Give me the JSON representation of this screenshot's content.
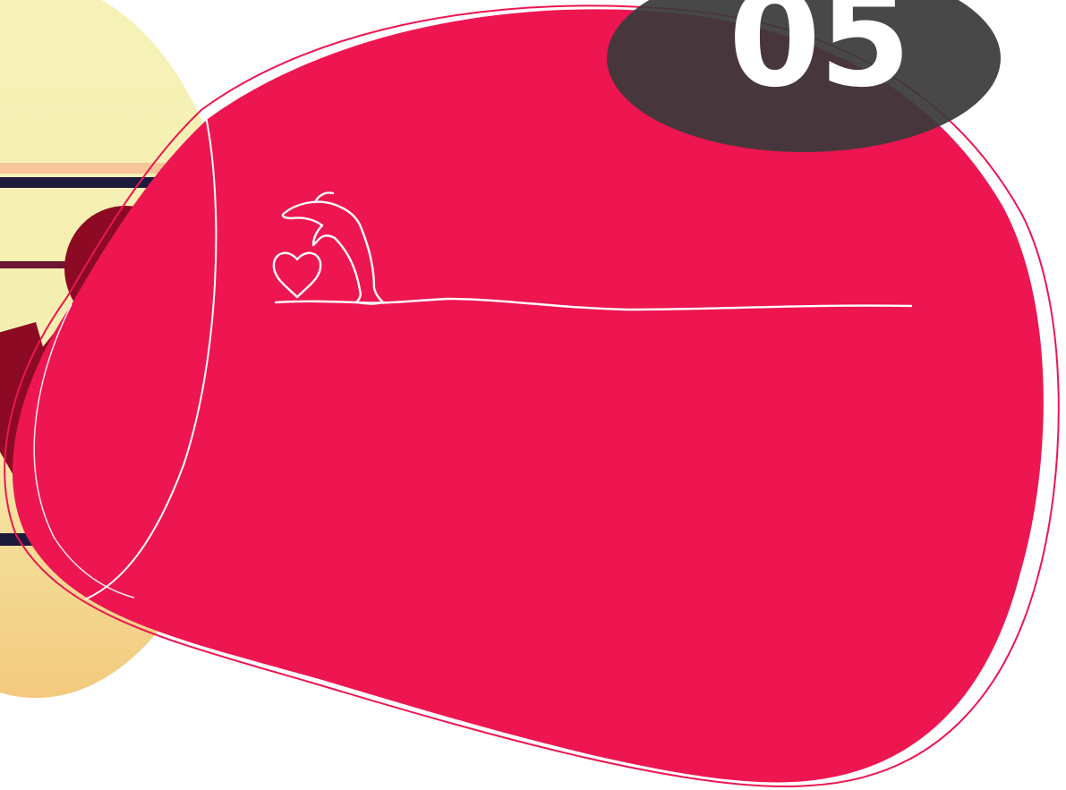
{
  "slide": {
    "number": "05",
    "colors": {
      "background": "#ffffff",
      "blob": "#ED1651",
      "blob_outline": "#ED1651",
      "number_badge": "#3A3A3A",
      "number_text": "#ffffff",
      "sun_light": "#F6F2B8",
      "sun_warm": "#F7D98A",
      "glitch_blue": "#1DB6F0",
      "glitch_navy": "#1E1A3C",
      "person_silhouette": "#8C0A24",
      "line_art": "#ffffff"
    },
    "icons": {
      "dolphin": "dolphin-icon",
      "heart": "heart-icon",
      "horizon": "horizon-line"
    }
  }
}
